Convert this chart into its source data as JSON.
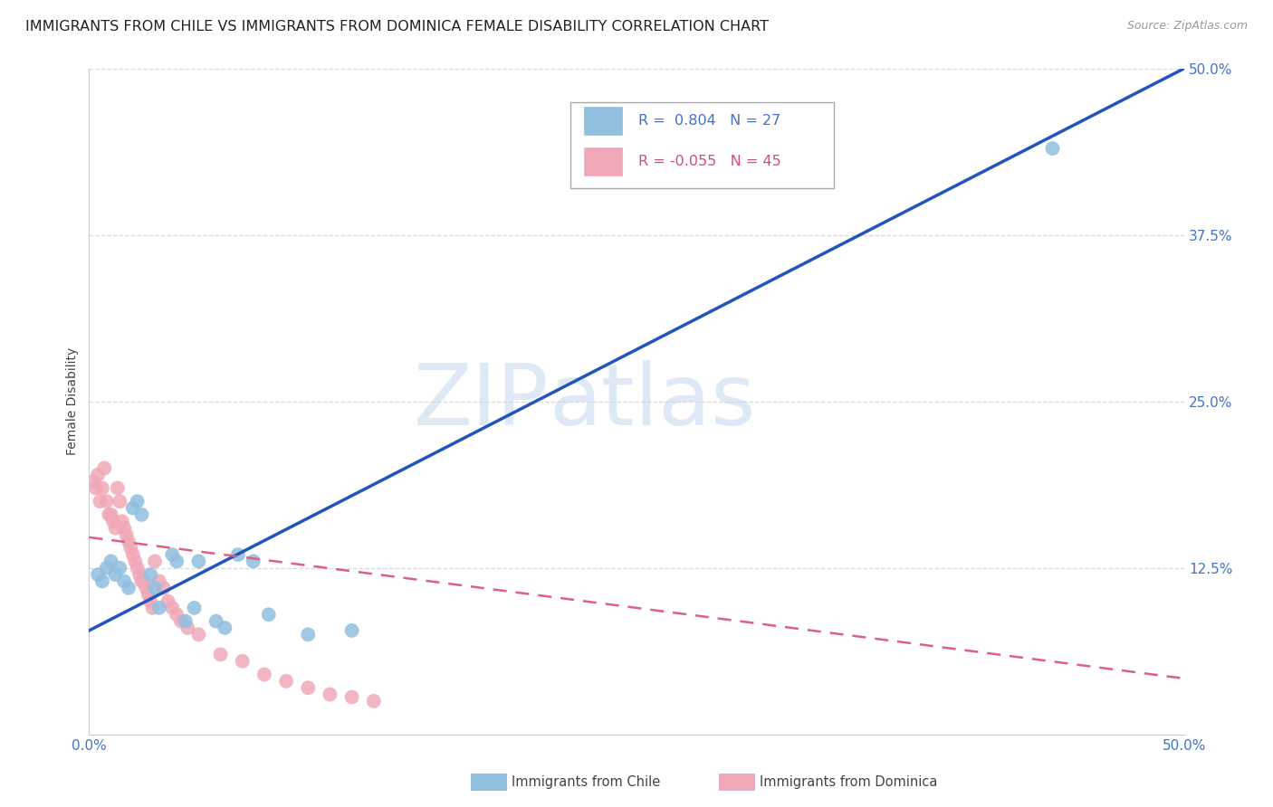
{
  "title": "IMMIGRANTS FROM CHILE VS IMMIGRANTS FROM DOMINICA FEMALE DISABILITY CORRELATION CHART",
  "source": "Source: ZipAtlas.com",
  "ylabel": "Female Disability",
  "xlim": [
    0.0,
    0.5
  ],
  "ylim": [
    0.0,
    0.5
  ],
  "ytick_labels_right": [
    "50.0%",
    "37.5%",
    "25.0%",
    "12.5%"
  ],
  "ytick_positions_right": [
    0.5,
    0.375,
    0.25,
    0.125
  ],
  "grid_color": "#d8d8d8",
  "watermark_zip": "ZIP",
  "watermark_atlas": "atlas",
  "legend_R_chile": "0.804",
  "legend_N_chile": "27",
  "legend_R_dominica": "-0.055",
  "legend_N_dominica": "45",
  "chile_color": "#90bfe0",
  "chile_color_dark": "#4472c4",
  "dominica_color": "#f0a8b8",
  "dominica_color_dark": "#d45070",
  "chile_scatter_x": [
    0.004,
    0.006,
    0.008,
    0.01,
    0.012,
    0.014,
    0.016,
    0.018,
    0.02,
    0.022,
    0.024,
    0.028,
    0.03,
    0.032,
    0.038,
    0.04,
    0.044,
    0.048,
    0.05,
    0.058,
    0.062,
    0.068,
    0.075,
    0.082,
    0.1,
    0.12,
    0.44
  ],
  "chile_scatter_y": [
    0.12,
    0.115,
    0.125,
    0.13,
    0.12,
    0.125,
    0.115,
    0.11,
    0.17,
    0.175,
    0.165,
    0.12,
    0.11,
    0.095,
    0.135,
    0.13,
    0.085,
    0.095,
    0.13,
    0.085,
    0.08,
    0.135,
    0.13,
    0.09,
    0.075,
    0.078,
    0.44
  ],
  "dominica_scatter_x": [
    0.002,
    0.003,
    0.004,
    0.005,
    0.006,
    0.007,
    0.008,
    0.009,
    0.01,
    0.011,
    0.012,
    0.013,
    0.014,
    0.015,
    0.016,
    0.017,
    0.018,
    0.019,
    0.02,
    0.021,
    0.022,
    0.023,
    0.024,
    0.025,
    0.026,
    0.027,
    0.028,
    0.029,
    0.03,
    0.032,
    0.034,
    0.036,
    0.038,
    0.04,
    0.042,
    0.045,
    0.05,
    0.06,
    0.07,
    0.08,
    0.09,
    0.1,
    0.11,
    0.12,
    0.13
  ],
  "dominica_scatter_y": [
    0.19,
    0.185,
    0.195,
    0.175,
    0.185,
    0.2,
    0.175,
    0.165,
    0.165,
    0.16,
    0.155,
    0.185,
    0.175,
    0.16,
    0.155,
    0.15,
    0.145,
    0.14,
    0.135,
    0.13,
    0.125,
    0.12,
    0.115,
    0.115,
    0.11,
    0.105,
    0.1,
    0.095,
    0.13,
    0.115,
    0.11,
    0.1,
    0.095,
    0.09,
    0.085,
    0.08,
    0.075,
    0.06,
    0.055,
    0.045,
    0.04,
    0.035,
    0.03,
    0.028,
    0.025
  ],
  "chile_line_x": [
    0.0,
    0.5
  ],
  "chile_line_y": [
    0.078,
    0.5
  ],
  "dominica_line_x": [
    0.0,
    0.5
  ],
  "dominica_line_y": [
    0.148,
    0.042
  ],
  "background_color": "#ffffff",
  "title_fontsize": 11.5,
  "source_fontsize": 9,
  "legend_label_chile": "Immigrants from Chile",
  "legend_label_dominica": "Immigrants from Dominica"
}
